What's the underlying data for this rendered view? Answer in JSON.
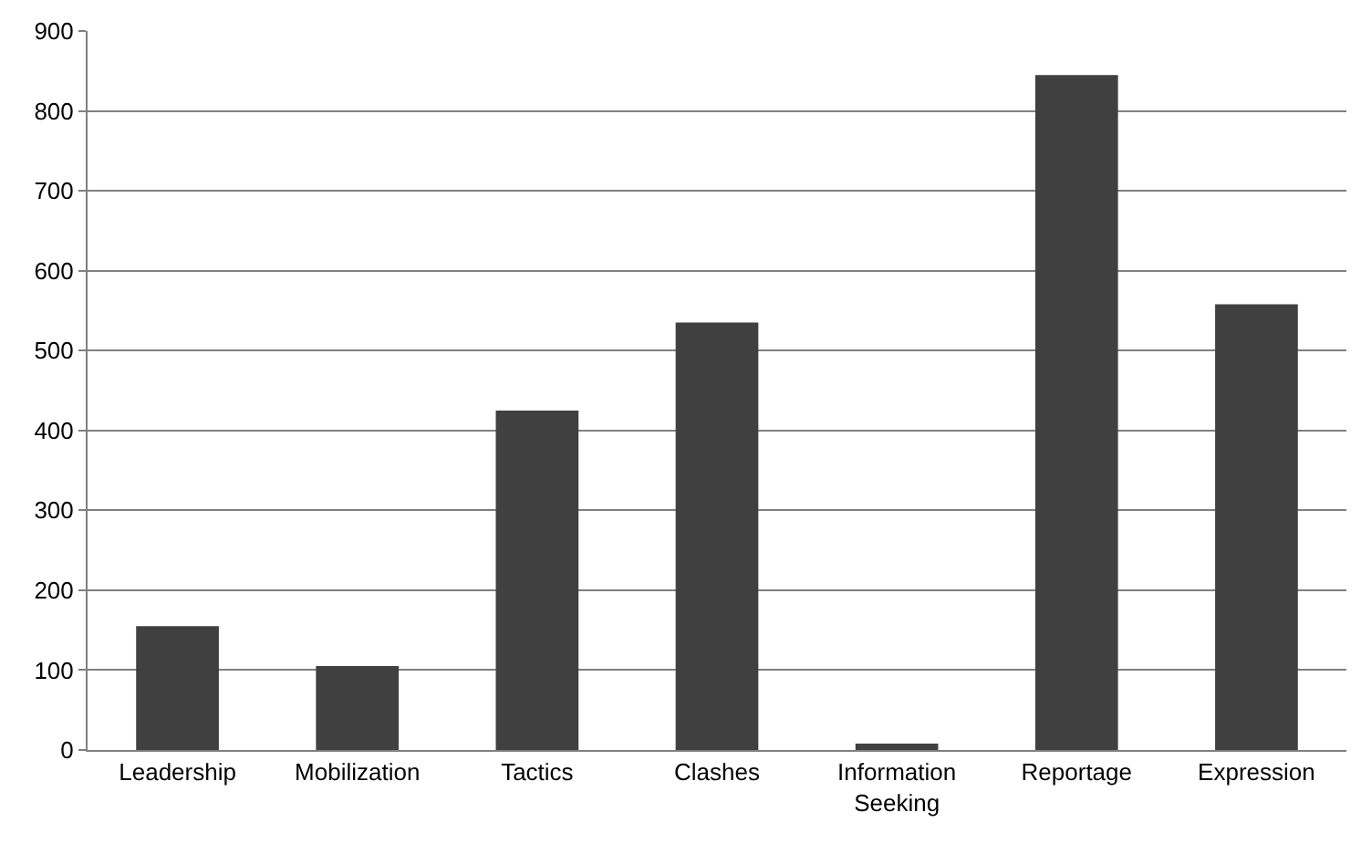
{
  "chart_data": {
    "type": "bar",
    "categories": [
      "Leadership",
      "Mobilization",
      "Tactics",
      "Clashes",
      "Information Seeking",
      "Reportage",
      "Expression"
    ],
    "values": [
      155,
      105,
      425,
      535,
      8,
      845,
      558
    ],
    "color": "#404040",
    "ylim": [
      0,
      900
    ],
    "yticks": [
      0,
      100,
      200,
      300,
      400,
      500,
      600,
      700,
      800,
      900
    ],
    "grid": "y",
    "legend": false
  }
}
